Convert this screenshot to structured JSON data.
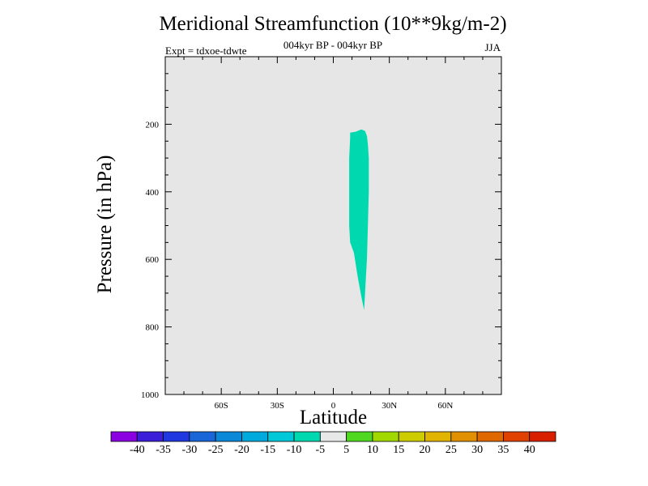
{
  "chart_data": {
    "type": "contour",
    "title": "Meridional Streamfunction (10**9kg/m-2)",
    "subtitle": "004kyr BP - 004kyr BP",
    "left_label": "Expt = tdxoe-tdwte",
    "right_label": "JJA",
    "xlabel": "Latitude",
    "ylabel": "Pressure (in hPa)",
    "xlim": [
      -90,
      90
    ],
    "ylim": [
      1000,
      0
    ],
    "x_ticks": [
      -60,
      -30,
      0,
      30,
      60
    ],
    "x_tick_labels": [
      "60S",
      "30S",
      "0",
      "30N",
      "60N"
    ],
    "y_ticks": [
      200,
      400,
      600,
      800,
      1000
    ],
    "y_tick_labels": [
      "200",
      "400",
      "600",
      "800",
      "1000"
    ],
    "background_level": "-5 to 5",
    "background_color": "#e6e6e6",
    "filled_regions": [
      {
        "level": "-10 to -5",
        "color": "#00d8b0",
        "outline": [
          [
            9,
            225
          ],
          [
            12,
            222
          ],
          [
            15,
            215
          ],
          [
            17,
            220
          ],
          [
            18,
            235
          ],
          [
            18.5,
            260
          ],
          [
            19,
            300
          ],
          [
            19,
            400
          ],
          [
            18.5,
            500
          ],
          [
            18,
            600
          ],
          [
            17.5,
            650
          ],
          [
            17,
            700
          ],
          [
            16.5,
            750
          ],
          [
            15,
            710
          ],
          [
            13,
            650
          ],
          [
            11,
            580
          ],
          [
            9,
            550
          ],
          [
            8.5,
            500
          ],
          [
            8.5,
            400
          ],
          [
            8.5,
            300
          ],
          [
            9,
            240
          ]
        ]
      }
    ],
    "colorbar": {
      "labels": [
        "-40",
        "-35",
        "-30",
        "-25",
        "-20",
        "-15",
        "-10",
        "-5",
        "5",
        "10",
        "15",
        "20",
        "25",
        "30",
        "35",
        "40"
      ],
      "colors": [
        "#8a00e0",
        "#3a1ed8",
        "#2038e0",
        "#1866d8",
        "#0b88d8",
        "#00aadc",
        "#00c8d8",
        "#00d8b0",
        "#e8e8e8",
        "#50d820",
        "#a0d800",
        "#cccc00",
        "#e0b400",
        "#e09000",
        "#e06800",
        "#e04000",
        "#d82000"
      ]
    }
  }
}
